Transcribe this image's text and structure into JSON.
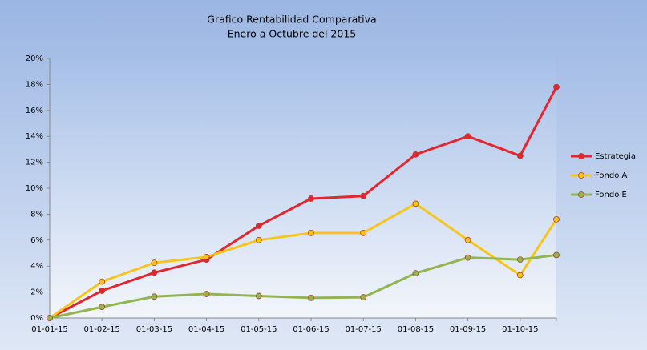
{
  "chart_data": {
    "type": "line",
    "title": "Grafico Rentabilidad Comparativa",
    "subtitle": "Enero a  Octubre del 2015",
    "categories": [
      "01-01-15",
      "01-02-15",
      "01-03-15",
      "01-04-15",
      "01-05-15",
      "01-06-15",
      "01-07-15",
      "01-08-15",
      "01-09-15",
      "01-10-15",
      null
    ],
    "series": [
      {
        "name": "Estrategia",
        "color": "#e3262d",
        "values": [
          0,
          2.1,
          3.5,
          4.5,
          7.1,
          9.2,
          9.4,
          12.6,
          14.0,
          12.5,
          17.8
        ]
      },
      {
        "name": "Fondo A",
        "color": "#f7c51a",
        "values": [
          0,
          2.8,
          4.25,
          4.7,
          6.0,
          6.55,
          6.55,
          8.8,
          6.0,
          3.3,
          7.6
        ]
      },
      {
        "name": "Fondo E",
        "color": "#92b550",
        "values": [
          0,
          0.85,
          1.65,
          1.85,
          1.7,
          1.55,
          1.6,
          3.45,
          4.65,
          4.5,
          4.85
        ]
      }
    ],
    "ylim": [
      0,
      20
    ],
    "yticks": [
      {
        "value": 0,
        "label": "0%"
      },
      {
        "value": 2,
        "label": "2%"
      },
      {
        "value": 4,
        "label": "4%"
      },
      {
        "value": 6,
        "label": "6%"
      },
      {
        "value": 8,
        "label": "8%"
      },
      {
        "value": 10,
        "label": "10%"
      },
      {
        "value": 12,
        "label": "12%"
      },
      {
        "value": 14,
        "label": "14%"
      },
      {
        "value": 16,
        "label": "16%"
      },
      {
        "value": 18,
        "label": "18%"
      },
      {
        "value": 20,
        "label": "20%"
      }
    ],
    "legend": "right"
  }
}
